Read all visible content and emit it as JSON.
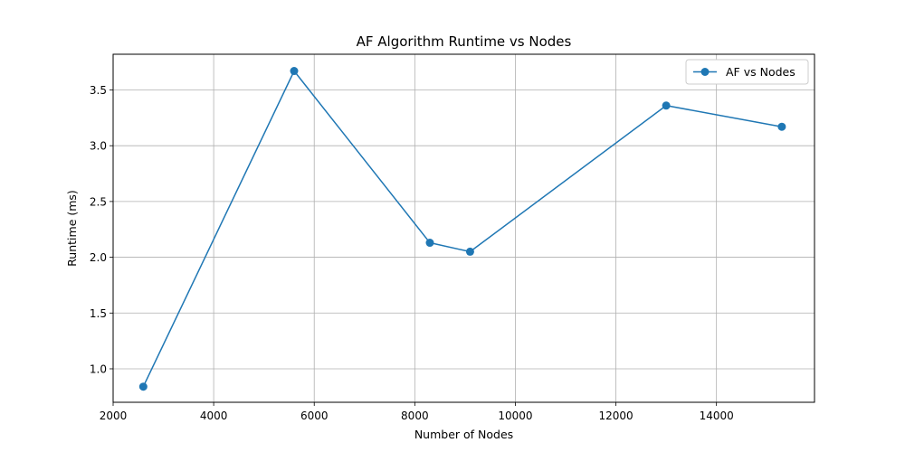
{
  "chart_data": {
    "type": "line",
    "title": "AF Algorithm Runtime vs Nodes",
    "xlabel": "Number of Nodes",
    "ylabel": "Runtime (ms)",
    "xlim": [
      2000,
      15950
    ],
    "ylim": [
      0.7,
      3.82
    ],
    "x_ticks": [
      2000,
      4000,
      6000,
      8000,
      10000,
      12000,
      14000
    ],
    "y_ticks": [
      1.0,
      1.5,
      2.0,
      2.5,
      3.0,
      3.5
    ],
    "grid": true,
    "legend_position": "top-right",
    "series": [
      {
        "name": "AF vs Nodes",
        "color": "#1f77b4",
        "marker": "circle",
        "x": [
          2600,
          5600,
          8300,
          9100,
          13000,
          15300
        ],
        "y": [
          0.84,
          3.67,
          2.13,
          2.05,
          3.36,
          3.17
        ]
      }
    ]
  }
}
